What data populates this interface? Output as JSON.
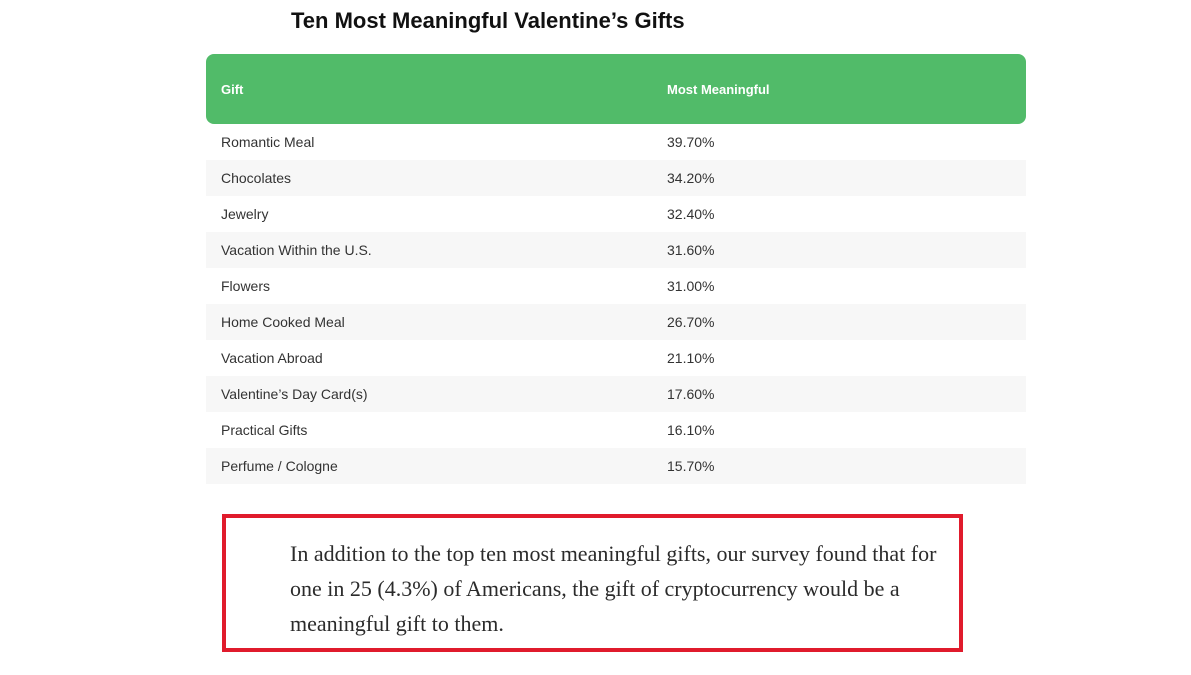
{
  "title": "Ten Most Meaningful Valentine’s Gifts",
  "table": {
    "headers": [
      "Gift",
      "Most Meaningful"
    ],
    "rows": [
      [
        "Romantic Meal",
        "39.70%"
      ],
      [
        "Chocolates",
        "34.20%"
      ],
      [
        "Jewelry",
        "32.40%"
      ],
      [
        "Vacation Within the U.S.",
        "31.60%"
      ],
      [
        "Flowers",
        "31.00%"
      ],
      [
        "Home Cooked Meal",
        "26.70%"
      ],
      [
        "Vacation Abroad",
        "21.10%"
      ],
      [
        "Valentine’s Day Card(s)",
        "17.60%"
      ],
      [
        "Practical Gifts",
        "16.10%"
      ],
      [
        "Perfume / Cologne",
        "15.70%"
      ]
    ]
  },
  "callout": {
    "text": "In addition to the top ten most meaningful gifts, our survey found that for one in 25 (4.3%) of Americans, the gift of cryptocurrency would be a meaningful gift to them."
  },
  "colors": {
    "header_bg": "#51bb69",
    "stripe_bg": "#f7f7f7",
    "callout_border": "#e01b2c"
  }
}
